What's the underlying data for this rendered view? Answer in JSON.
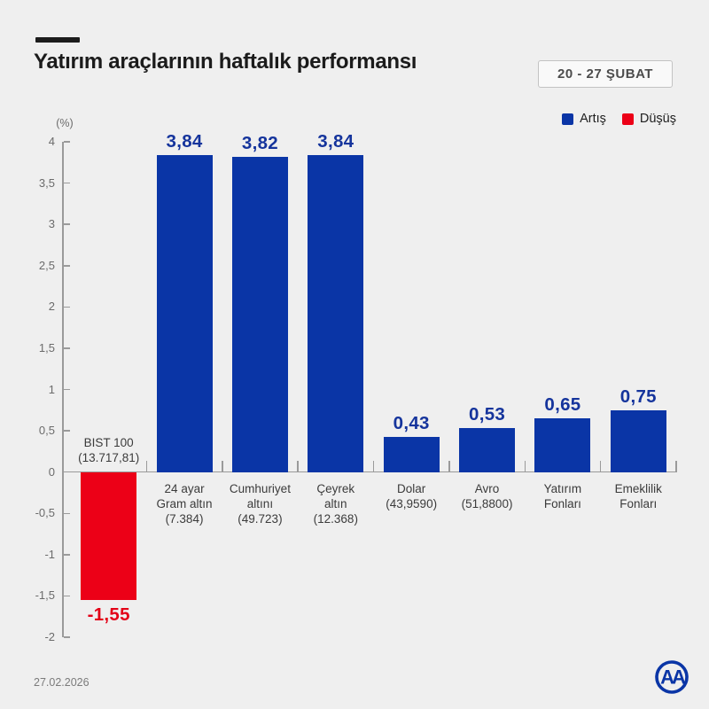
{
  "header": {
    "period_badge": "20 - 27 ŞUBAT"
  },
  "legend": {
    "items": [
      {
        "label": "Artış",
        "color": "#0A35A6"
      },
      {
        "label": "Düşüş",
        "color": "#EC0017"
      }
    ]
  },
  "chart_data": {
    "type": "bar",
    "title": "Yatırım araçlarının haftalık performansı",
    "period": "20 - 27 ŞUBAT",
    "unit_label": "(%)",
    "ylim": [
      -2,
      4
    ],
    "ytick_step": 0.5,
    "yticks": [
      "4",
      "3,5",
      "3",
      "2,5",
      "2",
      "1,5",
      "1",
      "0,5",
      "0",
      "-0,5",
      "-1",
      "-1,5",
      "-2"
    ],
    "grid": false,
    "legend_position": "top-right",
    "items": [
      {
        "name": "BIST 100 (13.717,81)",
        "label_lines": [
          "BIST 100",
          "(13.717,81)"
        ],
        "value": -1.55,
        "value_label": "-1,55",
        "color": "#EC0017"
      },
      {
        "name": "24 ayar Gram altın (7.384)",
        "label_lines": [
          "24 ayar",
          "Gram altın",
          "(7.384)"
        ],
        "value": 3.84,
        "value_label": "3,84",
        "color": "#0A35A6"
      },
      {
        "name": "Cumhuriyet altını (49.723)",
        "label_lines": [
          "Cumhuriyet",
          "altını",
          "(49.723)"
        ],
        "value": 3.82,
        "value_label": "3,82",
        "color": "#0A35A6"
      },
      {
        "name": "Çeyrek altın (12.368)",
        "label_lines": [
          "Çeyrek",
          "altın",
          "(12.368)"
        ],
        "value": 3.84,
        "value_label": "3,84",
        "color": "#0A35A6"
      },
      {
        "name": "Dolar (43,9590)",
        "label_lines": [
          "Dolar",
          "(43,9590)"
        ],
        "value": 0.43,
        "value_label": "0,43",
        "color": "#0A35A6"
      },
      {
        "name": "Avro (51,8800)",
        "label_lines": [
          "Avro",
          "(51,8800)"
        ],
        "value": 0.53,
        "value_label": "0,53",
        "color": "#0A35A6"
      },
      {
        "name": "Yatırım Fonları",
        "label_lines": [
          "Yatırım",
          "Fonları"
        ],
        "value": 0.65,
        "value_label": "0,65",
        "color": "#0A35A6"
      },
      {
        "name": "Emeklilik Fonları",
        "label_lines": [
          "Emeklilik",
          "Fonları"
        ],
        "value": 0.75,
        "value_label": "0,75",
        "color": "#0A35A6"
      }
    ],
    "colors": {
      "positive": "#0A35A6",
      "negative": "#EC0017",
      "value_positive": "#15349C",
      "value_negative": "#E30017",
      "axis": "#9A9A9A",
      "category_label": "#3B3B3B"
    }
  },
  "footer": {
    "date": "27.02.2026",
    "logo": "AA"
  }
}
